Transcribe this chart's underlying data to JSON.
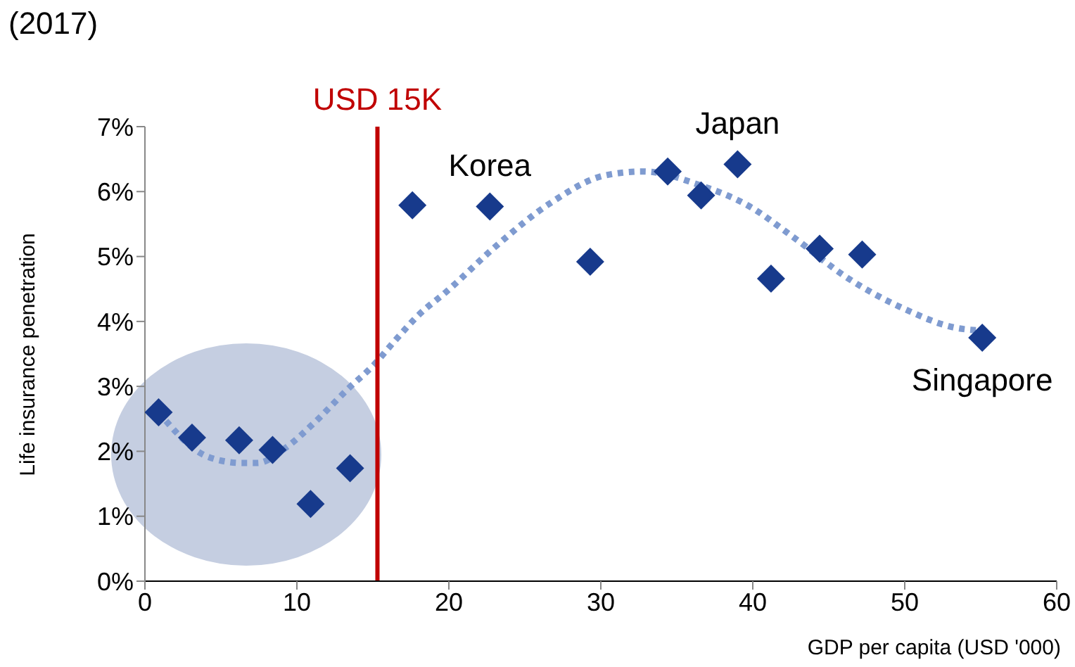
{
  "chart_data": {
    "type": "scatter",
    "title": "(2017)",
    "xlabel": "GDP per capita (USD '000)",
    "ylabel": "Life insurance penetration",
    "xlim": [
      0,
      60
    ],
    "xticks": [
      0,
      10,
      20,
      30,
      40,
      50,
      60
    ],
    "ylim": [
      0,
      7
    ],
    "yticks": [
      {
        "value": 0,
        "label": "0%"
      },
      {
        "value": 1,
        "label": "1%"
      },
      {
        "value": 2,
        "label": "2%"
      },
      {
        "value": 3,
        "label": "3%"
      },
      {
        "value": 4,
        "label": "4%"
      },
      {
        "value": 5,
        "label": "5%"
      },
      {
        "value": 6,
        "label": "6%"
      },
      {
        "value": 7,
        "label": "7%"
      }
    ],
    "marker": "diamond",
    "series": [
      {
        "color": "#173a8c",
        "x": [
          0.9,
          3.1,
          6.2,
          8.4,
          10.9,
          13.5,
          17.6,
          22.7,
          29.3,
          34.4,
          36.6,
          39.0,
          41.2,
          44.4,
          47.2,
          55.1
        ],
        "values": [
          2.6,
          2.21,
          2.17,
          2.02,
          1.19,
          1.74,
          5.79,
          5.77,
          4.92,
          6.31,
          5.94,
          6.42,
          4.66,
          5.12,
          5.03,
          3.75
        ]
      },
      {
        "type": "line",
        "color": "#7f9bd0",
        "line_style": "dotted",
        "marker": "none",
        "x": [
          0.9,
          4.2,
          6.4,
          7.4,
          9.3,
          11.1,
          13.4,
          15.1,
          16.4,
          18.1,
          19.8,
          23.1,
          26.6,
          30.3,
          32.8,
          36.5,
          39.8,
          42.6,
          46.3,
          50.0,
          53.4,
          55.0
        ],
        "values": [
          2.6,
          1.91,
          1.82,
          1.82,
          2.06,
          2.43,
          2.97,
          3.34,
          3.69,
          4.12,
          4.45,
          5.16,
          5.81,
          6.25,
          6.31,
          6.1,
          5.77,
          5.31,
          4.66,
          4.19,
          3.9,
          3.86
        ]
      }
    ],
    "ref_lines": [
      {
        "axis": "x",
        "value": 15.3,
        "label": "USD 15K",
        "color": "#c00000",
        "line_style": "solid"
      }
    ],
    "annotations": [
      {
        "text": "Korea",
        "x": 22.7,
        "y": 5.77
      },
      {
        "text": "Japan",
        "x": 39.0,
        "y": 6.42
      },
      {
        "text": "Singapore",
        "x": 55.1,
        "y": 3.75
      }
    ]
  }
}
